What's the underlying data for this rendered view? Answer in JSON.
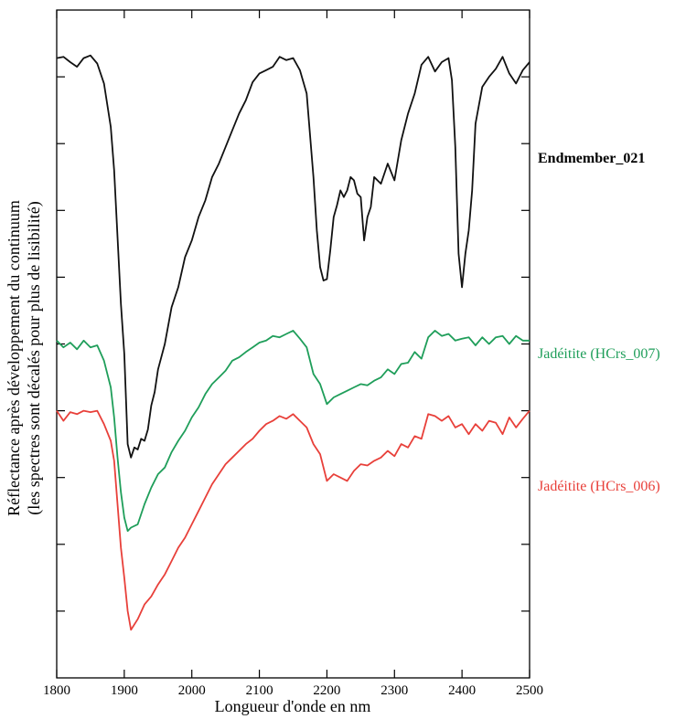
{
  "chart_data": {
    "type": "line",
    "xlabel": "Longueur d'onde en nm",
    "ylabel_line1": "Réflectance après développement du continuum",
    "ylabel_line2": "(les spectres sont décalés pour plus de lisibilité)",
    "xlim": [
      1800,
      2500
    ],
    "ylim": [
      0,
      10
    ],
    "x_ticks": [
      1800,
      1900,
      2000,
      2100,
      2200,
      2300,
      2400,
      2500
    ],
    "y_ticks": [
      1,
      2,
      3,
      4,
      5,
      6,
      7,
      8,
      9
    ],
    "grid": false,
    "series": [
      {
        "name": "Endmember_021",
        "color": "#111111",
        "label_bold": true,
        "x": [
          1800,
          1810,
          1820,
          1830,
          1840,
          1850,
          1860,
          1870,
          1880,
          1885,
          1890,
          1895,
          1900,
          1905,
          1910,
          1915,
          1920,
          1925,
          1930,
          1935,
          1940,
          1945,
          1950,
          1960,
          1970,
          1980,
          1990,
          2000,
          2010,
          2020,
          2030,
          2040,
          2050,
          2060,
          2070,
          2080,
          2090,
          2100,
          2110,
          2120,
          2130,
          2140,
          2150,
          2160,
          2170,
          2180,
          2185,
          2190,
          2195,
          2200,
          2205,
          2210,
          2215,
          2220,
          2225,
          2230,
          2235,
          2240,
          2245,
          2250,
          2255,
          2260,
          2265,
          2270,
          2280,
          2290,
          2300,
          2310,
          2320,
          2330,
          2340,
          2350,
          2360,
          2370,
          2380,
          2385,
          2390,
          2395,
          2400,
          2405,
          2410,
          2415,
          2420,
          2430,
          2440,
          2450,
          2460,
          2470,
          2480,
          2490,
          2500
        ],
        "y": [
          9.28,
          9.3,
          9.22,
          9.15,
          9.28,
          9.32,
          9.2,
          8.9,
          8.25,
          7.6,
          6.6,
          5.6,
          4.85,
          3.5,
          3.3,
          3.45,
          3.42,
          3.58,
          3.55,
          3.72,
          4.08,
          4.28,
          4.62,
          5.0,
          5.55,
          5.85,
          6.3,
          6.55,
          6.9,
          7.15,
          7.5,
          7.7,
          7.95,
          8.2,
          8.45,
          8.65,
          8.92,
          9.05,
          9.1,
          9.15,
          9.3,
          9.25,
          9.28,
          9.1,
          8.75,
          7.5,
          6.7,
          6.15,
          5.95,
          5.97,
          6.4,
          6.9,
          7.08,
          7.3,
          7.2,
          7.3,
          7.5,
          7.45,
          7.25,
          7.2,
          6.55,
          6.9,
          7.05,
          7.5,
          7.4,
          7.7,
          7.45,
          8.05,
          8.45,
          8.75,
          9.18,
          9.3,
          9.08,
          9.22,
          9.28,
          8.95,
          7.95,
          6.35,
          5.85,
          6.35,
          6.7,
          7.3,
          8.3,
          8.85,
          9.0,
          9.12,
          9.3,
          9.05,
          8.9,
          9.1,
          9.22
        ]
      },
      {
        "name": "Jadéitite (HCrs_007)",
        "color": "#1f9e5a",
        "label_bold": false,
        "x": [
          1800,
          1810,
          1820,
          1830,
          1840,
          1850,
          1860,
          1870,
          1880,
          1885,
          1890,
          1895,
          1900,
          1905,
          1910,
          1920,
          1930,
          1940,
          1950,
          1960,
          1970,
          1980,
          1990,
          2000,
          2010,
          2020,
          2030,
          2040,
          2050,
          2060,
          2070,
          2080,
          2090,
          2100,
          2110,
          2120,
          2130,
          2140,
          2150,
          2160,
          2170,
          2180,
          2190,
          2200,
          2210,
          2220,
          2230,
          2240,
          2250,
          2260,
          2270,
          2280,
          2290,
          2300,
          2310,
          2320,
          2330,
          2340,
          2350,
          2360,
          2370,
          2380,
          2390,
          2400,
          2410,
          2420,
          2430,
          2440,
          2450,
          2460,
          2470,
          2480,
          2490,
          2500
        ],
        "y": [
          5.05,
          4.95,
          5.02,
          4.92,
          5.05,
          4.95,
          4.98,
          4.75,
          4.35,
          3.9,
          3.3,
          2.78,
          2.4,
          2.2,
          2.25,
          2.3,
          2.6,
          2.85,
          3.05,
          3.15,
          3.38,
          3.55,
          3.7,
          3.9,
          4.05,
          4.25,
          4.4,
          4.5,
          4.6,
          4.75,
          4.8,
          4.88,
          4.95,
          5.02,
          5.05,
          5.12,
          5.1,
          5.15,
          5.2,
          5.08,
          4.95,
          4.55,
          4.4,
          4.1,
          4.2,
          4.25,
          4.3,
          4.35,
          4.4,
          4.38,
          4.45,
          4.5,
          4.62,
          4.55,
          4.7,
          4.72,
          4.88,
          4.78,
          5.1,
          5.2,
          5.12,
          5.15,
          5.05,
          5.08,
          5.1,
          4.98,
          5.1,
          5.0,
          5.1,
          5.12,
          5.0,
          5.12,
          5.05,
          5.05
        ]
      },
      {
        "name": "Jadéitite (HCrs_006)",
        "color": "#e8403a",
        "label_bold": false,
        "x": [
          1800,
          1810,
          1820,
          1830,
          1840,
          1850,
          1860,
          1870,
          1880,
          1885,
          1890,
          1895,
          1900,
          1905,
          1910,
          1920,
          1930,
          1940,
          1950,
          1960,
          1970,
          1980,
          1990,
          2000,
          2010,
          2020,
          2030,
          2040,
          2050,
          2060,
          2070,
          2080,
          2090,
          2100,
          2110,
          2120,
          2130,
          2140,
          2150,
          2160,
          2170,
          2180,
          2190,
          2200,
          2210,
          2220,
          2230,
          2240,
          2250,
          2260,
          2270,
          2280,
          2290,
          2300,
          2310,
          2320,
          2330,
          2340,
          2350,
          2360,
          2370,
          2380,
          2390,
          2400,
          2410,
          2420,
          2430,
          2440,
          2450,
          2460,
          2470,
          2480,
          2490,
          2500
        ],
        "y": [
          4.0,
          3.85,
          3.98,
          3.95,
          4.0,
          3.98,
          4.0,
          3.8,
          3.55,
          3.25,
          2.6,
          1.95,
          1.5,
          1.0,
          0.72,
          0.88,
          1.1,
          1.22,
          1.4,
          1.55,
          1.75,
          1.95,
          2.1,
          2.3,
          2.5,
          2.7,
          2.9,
          3.05,
          3.2,
          3.3,
          3.4,
          3.5,
          3.58,
          3.7,
          3.8,
          3.85,
          3.92,
          3.88,
          3.95,
          3.85,
          3.75,
          3.5,
          3.35,
          2.95,
          3.05,
          3.0,
          2.95,
          3.1,
          3.2,
          3.18,
          3.25,
          3.3,
          3.4,
          3.32,
          3.5,
          3.45,
          3.62,
          3.58,
          3.95,
          3.92,
          3.85,
          3.92,
          3.75,
          3.8,
          3.65,
          3.8,
          3.7,
          3.85,
          3.82,
          3.65,
          3.9,
          3.75,
          3.88,
          4.0
        ]
      }
    ]
  }
}
